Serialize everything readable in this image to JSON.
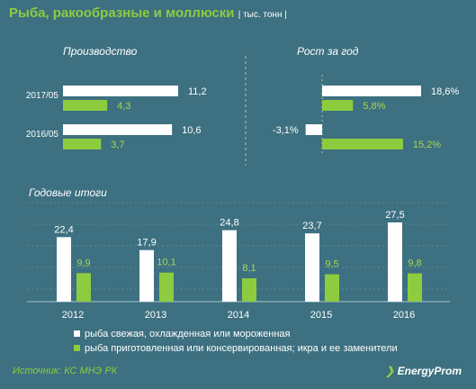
{
  "header": {
    "title": "Рыба, ракообразные и моллюски",
    "unit": "| тыс. тонн |"
  },
  "colors": {
    "background": "#3d7080",
    "fresh": "#ffffff",
    "processed": "#8dcc3f",
    "value_processed": "#a8d84f"
  },
  "legend": {
    "fresh": "рыба свежая, охлажденная или мороженная",
    "processed": "рыба приготовленная или консервированная; икра и ее заменители"
  },
  "chart_data": [
    {
      "type": "bar",
      "orientation": "horizontal",
      "title": "Производство",
      "categories": [
        "2017/05",
        "2016/05"
      ],
      "series": [
        {
          "key": "fresh",
          "values": [
            11.2,
            10.6
          ],
          "labels": [
            "11,2",
            "10,6"
          ]
        },
        {
          "key": "processed",
          "values": [
            4.3,
            3.7
          ],
          "labels": [
            "4,3",
            "3,7"
          ]
        }
      ]
    },
    {
      "type": "bar",
      "orientation": "horizontal",
      "title": "Рост за год",
      "categories": [
        "2017/05",
        "2016/05"
      ],
      "series": [
        {
          "key": "fresh",
          "values": [
            18.6,
            -3.1
          ],
          "labels": [
            "18,6%",
            "-3,1%"
          ]
        },
        {
          "key": "processed",
          "values": [
            5.8,
            15.2
          ],
          "labels": [
            "5,8%",
            "15,2%"
          ]
        }
      ]
    },
    {
      "type": "bar",
      "orientation": "vertical",
      "title": "Годовые итоги",
      "categories": [
        "2012",
        "2013",
        "2014",
        "2015",
        "2016"
      ],
      "series": [
        {
          "key": "fresh",
          "values": [
            22.4,
            17.9,
            24.8,
            23.7,
            27.5
          ],
          "labels": [
            "22,4",
            "17,9",
            "24,8",
            "23,7",
            "27,5"
          ]
        },
        {
          "key": "processed",
          "values": [
            9.9,
            10.1,
            8.1,
            9.5,
            9.8
          ],
          "labels": [
            "9,9",
            "10,1",
            "8,1",
            "9,5",
            "9,8"
          ]
        }
      ]
    }
  ],
  "footer": {
    "source": "Источник: КС МНЭ РК",
    "brand": "EnergyProm"
  }
}
